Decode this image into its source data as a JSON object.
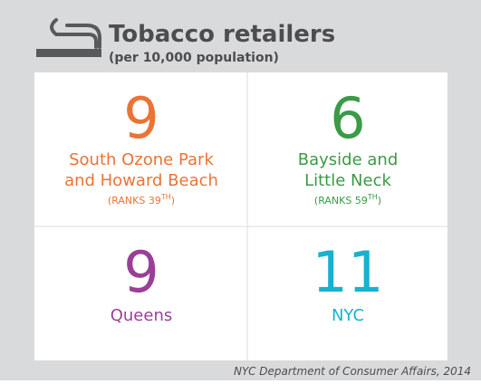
{
  "header": {
    "title": "Tobacco retailers",
    "subtitle": "(per 10,000 population)"
  },
  "cells": [
    {
      "value": 9,
      "label": [
        "South Ozone Park",
        "and Howard Beach"
      ],
      "rank": {
        "text": "(RANKS 39",
        "sup": "TH",
        "end": ")"
      },
      "color": "#ea7436"
    },
    {
      "value": 6,
      "label": [
        "Bayside and",
        "Little Neck"
      ],
      "rank": {
        "text": "(RANKS 59",
        "sup": "TH",
        "end": ")"
      },
      "color": "#3b9a46"
    },
    {
      "value": 9,
      "label": [
        "Queens"
      ],
      "color": "#9a3f98"
    },
    {
      "value": 11,
      "label": [
        "NYC"
      ],
      "color": "#18b2cf"
    }
  ],
  "source": "NYC Department of Consumer Affairs, 2014"
}
